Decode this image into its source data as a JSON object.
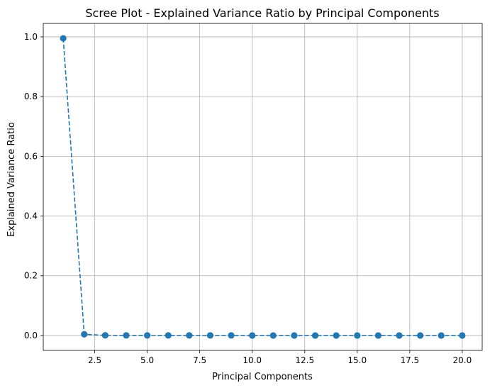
{
  "chart_data": {
    "type": "line",
    "title": "Scree Plot - Explained Variance Ratio by Principal Components",
    "xlabel": "Principal Components",
    "ylabel": "Explained Variance Ratio",
    "x": [
      1,
      2,
      3,
      4,
      5,
      6,
      7,
      8,
      9,
      10,
      11,
      12,
      13,
      14,
      15,
      16,
      17,
      18,
      19,
      20
    ],
    "series": [
      {
        "values": [
          0.995,
          0.004,
          0.0005,
          0.0003,
          0.0002,
          0.0001,
          0.0001,
          0.0001,
          0.0001,
          0.0,
          0.0,
          0.0,
          0.0,
          0.0,
          0.0,
          0.0,
          0.0,
          0.0,
          0.0,
          0.0
        ],
        "color": "#1f77b4",
        "linestyle": "dashed",
        "marker": "circle"
      }
    ],
    "xlim": [
      0.05,
      20.95
    ],
    "ylim": [
      -0.05,
      1.045
    ],
    "xticks": [
      2.5,
      5.0,
      7.5,
      10.0,
      12.5,
      15.0,
      17.5,
      20.0
    ],
    "xtick_labels": [
      "2.5",
      "5.0",
      "7.5",
      "10.0",
      "12.5",
      "15.0",
      "17.5",
      "20.0"
    ],
    "yticks": [
      0.0,
      0.2,
      0.4,
      0.6,
      0.8,
      1.0
    ],
    "ytick_labels": [
      "0.0",
      "0.2",
      "0.4",
      "0.6",
      "0.8",
      "1.0"
    ],
    "grid": true
  }
}
